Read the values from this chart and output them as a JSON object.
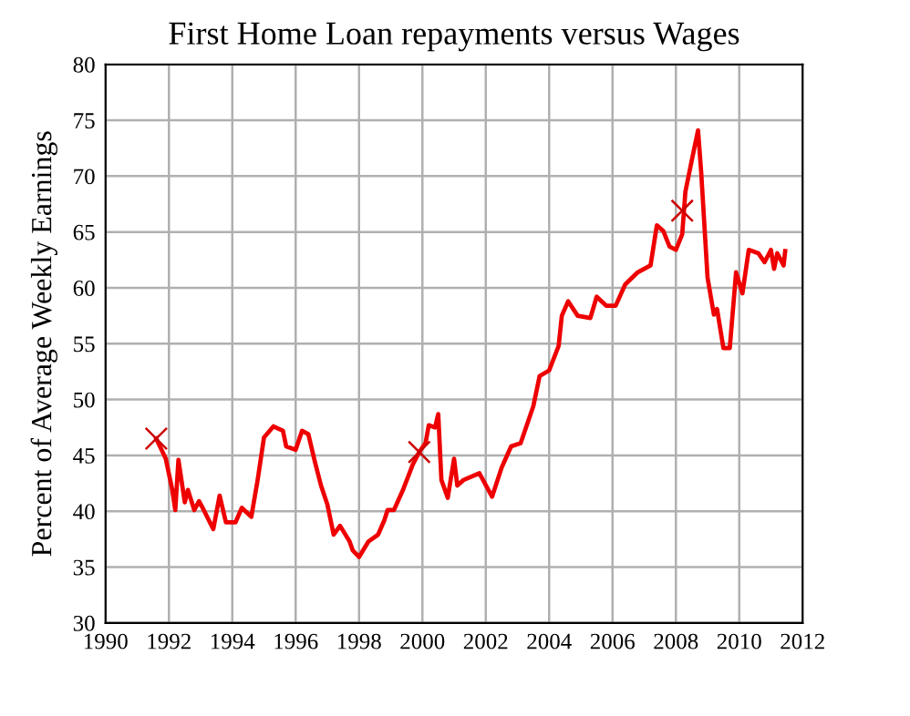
{
  "chart_data": {
    "type": "line",
    "title": "First Home Loan repayments versus Wages",
    "ylabel": "Percent of Average Weekly Earnings",
    "xlim": [
      1990,
      2012
    ],
    "xticks": [
      1990,
      1992,
      1994,
      1996,
      1998,
      2000,
      2002,
      2004,
      2006,
      2008,
      2010,
      2012
    ],
    "ylim": [
      30,
      80
    ],
    "yticks": [
      30,
      35,
      40,
      45,
      50,
      55,
      60,
      65,
      70,
      75,
      80
    ],
    "grid": true,
    "line_style": "solid",
    "series": [
      {
        "color": "#ee0000",
        "marker": "none",
        "x": [
          1991.6,
          1991.9,
          1992.1,
          1992.2,
          1992.3,
          1992.5,
          1992.6,
          1992.8,
          1992.95,
          1993.1,
          1993.4,
          1993.6,
          1993.8,
          1994.1,
          1994.3,
          1994.6,
          1994.8,
          1995.0,
          1995.3,
          1995.6,
          1995.7,
          1996.0,
          1996.2,
          1996.4,
          1996.6,
          1996.8,
          1997.0,
          1997.2,
          1997.4,
          1997.7,
          1997.8,
          1998.0,
          1998.3,
          1998.6,
          1998.8,
          1998.9,
          1999.1,
          1999.4,
          1999.7,
          1999.9,
          2000.1,
          2000.2,
          2000.4,
          2000.5,
          2000.6,
          2000.8,
          2001.0,
          2001.1,
          2001.3,
          2001.8,
          2002.2,
          2002.5,
          2002.8,
          2003.1,
          2003.5,
          2003.7,
          2004.0,
          2004.3,
          2004.4,
          2004.6,
          2004.9,
          2005.3,
          2005.5,
          2005.8,
          2006.1,
          2006.4,
          2006.8,
          2007.2,
          2007.4,
          2007.6,
          2007.8,
          2008.0,
          2008.2,
          2008.3,
          2008.5,
          2008.7,
          2008.8,
          2009.0,
          2009.2,
          2009.3,
          2009.5,
          2009.7,
          2009.9,
          2010.1,
          2010.3,
          2010.6,
          2010.8,
          2011.0,
          2011.1,
          2011.2,
          2011.4,
          2011.45
        ],
        "values": [
          46.5,
          44.7,
          42.0,
          40.1,
          44.6,
          40.8,
          41.9,
          40.1,
          40.9,
          40.1,
          38.4,
          41.4,
          39.0,
          39.0,
          40.3,
          39.5,
          42.8,
          46.6,
          47.6,
          47.2,
          45.8,
          45.5,
          47.2,
          46.9,
          44.5,
          42.3,
          40.6,
          37.9,
          38.7,
          37.3,
          36.5,
          35.9,
          37.3,
          37.9,
          39.2,
          40.1,
          40.1,
          42.0,
          44.2,
          45.3,
          46.1,
          47.7,
          47.5,
          48.7,
          42.8,
          41.2,
          44.7,
          42.3,
          42.8,
          43.4,
          41.3,
          43.9,
          45.8,
          46.1,
          49.4,
          52.1,
          52.6,
          54.8,
          57.5,
          58.8,
          57.5,
          57.3,
          59.2,
          58.4,
          58.4,
          60.3,
          61.4,
          62.0,
          65.6,
          65.1,
          63.7,
          63.4,
          64.8,
          68.6,
          71.4,
          74.1,
          70.3,
          60.9,
          57.6,
          58.1,
          54.6,
          54.6,
          61.4,
          59.5,
          63.4,
          63.1,
          62.3,
          63.4,
          61.7,
          63.1,
          62.0,
          63.3
        ]
      },
      {
        "type": "scatter",
        "color": "#cc0000",
        "marker": "cross",
        "x": [
          1991.6,
          1999.9,
          2008.2
        ],
        "values": [
          46.5,
          45.3,
          66.9
        ]
      }
    ]
  }
}
